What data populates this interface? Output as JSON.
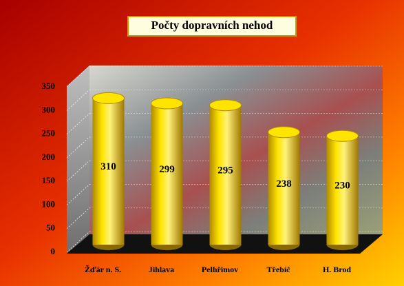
{
  "chart_data": {
    "type": "bar",
    "title": "Počty dopravních nehod",
    "categories": [
      "Žďár n. S.",
      "Jihlava",
      "Pelhřimov",
      "Třebíč",
      "H. Brod"
    ],
    "values": [
      310,
      299,
      295,
      238,
      230
    ],
    "color": "#f5d000",
    "ylim": [
      0,
      350
    ],
    "yticks": [
      0,
      50,
      100,
      150,
      200,
      250,
      300,
      350
    ],
    "grid": true
  }
}
